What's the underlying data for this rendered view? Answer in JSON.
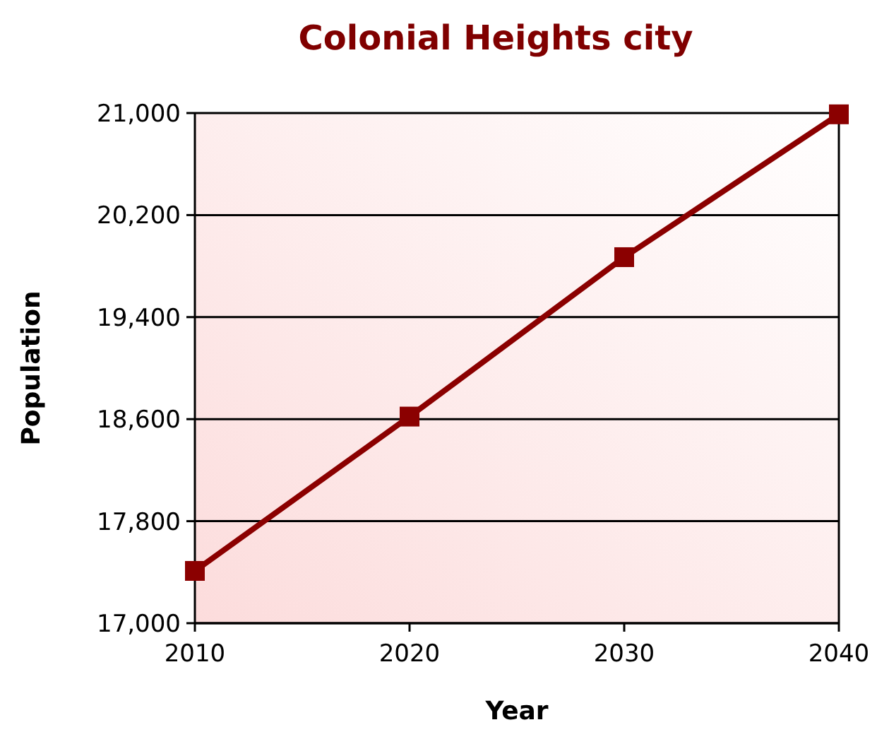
{
  "chart_data": {
    "type": "line",
    "title": "Colonial Heights city",
    "xlabel": "Year",
    "ylabel": "Population",
    "x": [
      2010,
      2020,
      2030,
      2040
    ],
    "series": [
      {
        "color": "#8b0000",
        "values": [
          17410,
          18620,
          19870,
          20990
        ]
      }
    ],
    "xlim": [
      2010,
      2040
    ],
    "xticks": [
      2010,
      2020,
      2030,
      2040
    ],
    "ylim": [
      17000,
      21000
    ],
    "yticks": [
      {
        "value": 17000,
        "label": "17,000"
      },
      {
        "value": 17800,
        "label": "17,800"
      },
      {
        "value": 18600,
        "label": "18,600"
      },
      {
        "value": 19400,
        "label": "19,400"
      },
      {
        "value": 20200,
        "label": "20,200"
      },
      {
        "value": 21000,
        "label": "21,000"
      }
    ],
    "grid": "y",
    "marker": "square",
    "line_style": "solid"
  }
}
